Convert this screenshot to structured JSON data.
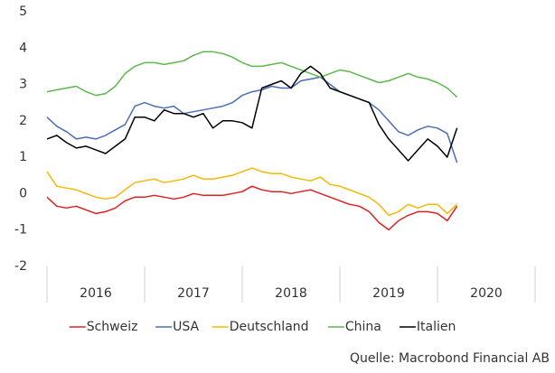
{
  "chart_data": {
    "type": "line",
    "x": [
      2016.0,
      2016.1,
      2016.2,
      2016.3,
      2016.4,
      2016.5,
      2016.6,
      2016.7,
      2016.8,
      2016.9,
      2017.0,
      2017.1,
      2017.2,
      2017.3,
      2017.4,
      2017.5,
      2017.6,
      2017.7,
      2017.8,
      2017.9,
      2018.0,
      2018.1,
      2018.2,
      2018.3,
      2018.4,
      2018.5,
      2018.6,
      2018.7,
      2018.8,
      2018.9,
      2019.0,
      2019.1,
      2019.2,
      2019.3,
      2019.4,
      2019.5,
      2019.6,
      2019.7,
      2019.8,
      2019.9,
      2020.0,
      2020.1,
      2020.2
    ],
    "series": [
      {
        "name": "Schweiz",
        "color": "#e0201f",
        "values": [
          -0.1,
          -0.35,
          -0.4,
          -0.35,
          -0.45,
          -0.55,
          -0.5,
          -0.4,
          -0.2,
          -0.1,
          -0.1,
          -0.05,
          -0.1,
          -0.15,
          -0.1,
          0.0,
          -0.05,
          -0.05,
          -0.05,
          0.0,
          0.05,
          0.2,
          0.1,
          0.05,
          0.05,
          0.0,
          0.05,
          0.1,
          0.0,
          -0.1,
          -0.2,
          -0.3,
          -0.35,
          -0.5,
          -0.8,
          -1.0,
          -0.75,
          -0.6,
          -0.5,
          -0.5,
          -0.55,
          -0.75,
          -0.35
        ]
      },
      {
        "name": "USA",
        "color": "#4a6db8",
        "values": [
          2.1,
          1.85,
          1.7,
          1.5,
          1.55,
          1.5,
          1.6,
          1.75,
          1.9,
          2.4,
          2.5,
          2.4,
          2.35,
          2.4,
          2.2,
          2.25,
          2.3,
          2.35,
          2.4,
          2.5,
          2.7,
          2.8,
          2.85,
          2.95,
          2.9,
          2.9,
          3.1,
          3.15,
          3.2,
          3.0,
          2.8,
          2.7,
          2.6,
          2.5,
          2.3,
          2.0,
          1.7,
          1.6,
          1.75,
          1.85,
          1.8,
          1.65,
          0.85
        ]
      },
      {
        "name": "Deutschland",
        "color": "#f5b800",
        "values": [
          0.6,
          0.2,
          0.15,
          0.1,
          0.0,
          -0.1,
          -0.15,
          -0.1,
          0.1,
          0.3,
          0.35,
          0.4,
          0.3,
          0.35,
          0.4,
          0.5,
          0.4,
          0.4,
          0.45,
          0.5,
          0.6,
          0.7,
          0.6,
          0.55,
          0.55,
          0.45,
          0.4,
          0.35,
          0.45,
          0.25,
          0.2,
          0.1,
          0.0,
          -0.1,
          -0.3,
          -0.6,
          -0.5,
          -0.3,
          -0.4,
          -0.3,
          -0.3,
          -0.55,
          -0.3
        ]
      },
      {
        "name": "China",
        "color": "#5cb84a",
        "values": [
          2.8,
          2.85,
          2.9,
          2.95,
          2.8,
          2.7,
          2.75,
          2.95,
          3.3,
          3.5,
          3.6,
          3.6,
          3.55,
          3.6,
          3.65,
          3.8,
          3.9,
          3.9,
          3.85,
          3.75,
          3.6,
          3.5,
          3.5,
          3.55,
          3.6,
          3.5,
          3.4,
          3.3,
          3.2,
          3.3,
          3.4,
          3.35,
          3.25,
          3.15,
          3.05,
          3.1,
          3.2,
          3.3,
          3.2,
          3.15,
          3.05,
          2.9,
          2.65
        ]
      },
      {
        "name": "Italien",
        "color": "#000000",
        "values": [
          1.5,
          1.6,
          1.4,
          1.25,
          1.3,
          1.2,
          1.1,
          1.3,
          1.5,
          2.1,
          2.1,
          2.0,
          2.3,
          2.2,
          2.2,
          2.1,
          2.2,
          1.8,
          2.0,
          2.0,
          1.95,
          1.8,
          2.9,
          3.0,
          3.1,
          2.9,
          3.3,
          3.5,
          3.3,
          2.9,
          2.8,
          2.7,
          2.6,
          2.5,
          1.9,
          1.5,
          1.2,
          0.9,
          1.2,
          1.5,
          1.3,
          1.0,
          1.8
        ]
      }
    ],
    "xlim": [
      2016,
      2021
    ],
    "xticks": [
      2016,
      2017,
      2018,
      2019,
      2020
    ],
    "ylim": [
      -3,
      5
    ],
    "yticks": [
      -2,
      -1,
      0,
      1,
      2,
      3,
      4,
      5
    ],
    "legend": "bottom",
    "source": "Quelle: Macrobond Financial AB"
  }
}
